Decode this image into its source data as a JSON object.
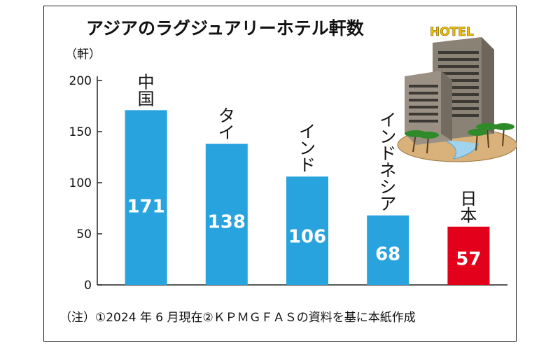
{
  "chart_data": {
    "type": "bar",
    "title": "アジアのラグジュアリーホテル軒数",
    "unit_label": "（軒）",
    "categories": [
      "中国",
      "タイ",
      "インド",
      "インドネシア",
      "日本"
    ],
    "values": [
      171,
      138,
      106,
      68,
      57
    ],
    "value_labels": [
      "171",
      "138",
      "106",
      "68",
      "57"
    ],
    "ylim": [
      0,
      200
    ],
    "yticks": [
      "0",
      "50",
      "100",
      "150",
      "200"
    ],
    "grid": false,
    "colors": {
      "default_bar": "#29a3dd",
      "highlight_bar": "#e3001b",
      "value_text": "#ffffff"
    },
    "highlight_category": "日本",
    "note": "（注）①2024 年 6 月現在②ＫＰＭＧＦＡＳの資料を基に本紙作成"
  },
  "illustration": {
    "sign_text": "HOTEL",
    "icon": "hotel-buildings-icon"
  }
}
